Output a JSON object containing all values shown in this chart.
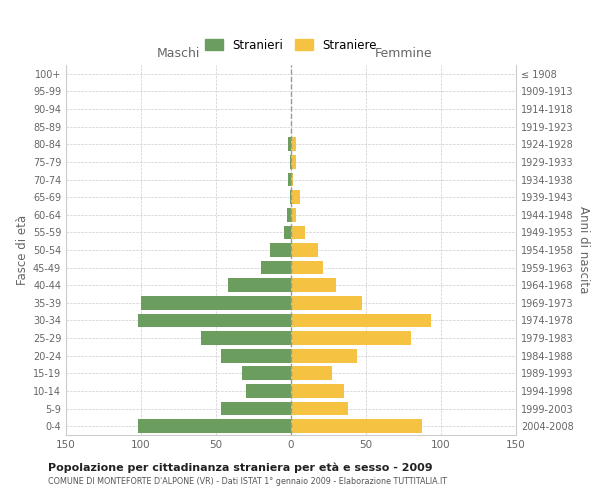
{
  "age_groups": [
    "0-4",
    "5-9",
    "10-14",
    "15-19",
    "20-24",
    "25-29",
    "30-34",
    "35-39",
    "40-44",
    "45-49",
    "50-54",
    "55-59",
    "60-64",
    "65-69",
    "70-74",
    "75-79",
    "80-84",
    "85-89",
    "90-94",
    "95-99",
    "100+"
  ],
  "birth_years": [
    "2004-2008",
    "1999-2003",
    "1994-1998",
    "1989-1993",
    "1984-1988",
    "1979-1983",
    "1974-1978",
    "1969-1973",
    "1964-1968",
    "1959-1963",
    "1954-1958",
    "1949-1953",
    "1944-1948",
    "1939-1943",
    "1934-1938",
    "1929-1933",
    "1924-1928",
    "1919-1923",
    "1914-1918",
    "1909-1913",
    "≤ 1908"
  ],
  "maschi": [
    102,
    47,
    30,
    33,
    47,
    60,
    102,
    100,
    42,
    20,
    14,
    5,
    3,
    1,
    2,
    1,
    2,
    0,
    0,
    0,
    0
  ],
  "femmine": [
    87,
    38,
    35,
    27,
    44,
    80,
    93,
    47,
    30,
    21,
    18,
    9,
    3,
    6,
    1,
    3,
    3,
    0,
    0,
    0,
    0
  ],
  "color_maschi": "#6b9e5e",
  "color_femmine": "#f5c242",
  "title": "Popolazione per cittadinanza straniera per età e sesso - 2009",
  "subtitle": "COMUNE DI MONTEFORTE D'ALPONE (VR) - Dati ISTAT 1° gennaio 2009 - Elaborazione TUTTITALIA.IT",
  "ylabel_left": "Fasce di età",
  "ylabel_right": "Anni di nascita",
  "xlabel_maschi": "Maschi",
  "xlabel_femmine": "Femmine",
  "legend_stranieri": "Stranieri",
  "legend_straniere": "Straniere",
  "xlim": 150,
  "bg_color": "#ffffff",
  "grid_color": "#cccccc",
  "dashed_line_color": "#999999"
}
